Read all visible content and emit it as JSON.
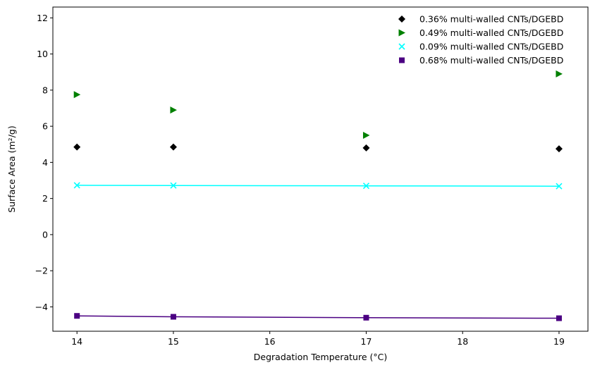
{
  "chart_data": {
    "type": "scatter",
    "xlabel": "Degradation Temperature (°C)",
    "ylabel": "Surface Area (m²/g)",
    "xlim": [
      13.75,
      19.3
    ],
    "ylim": [
      -5.35,
      12.6
    ],
    "xticks": [
      14,
      15,
      16,
      17,
      18,
      19
    ],
    "yticks": [
      -4,
      -2,
      0,
      2,
      4,
      6,
      8,
      10,
      12
    ],
    "legend_position": "top-right",
    "grid": false,
    "series": [
      {
        "name": "0.36% multi-walled CNTs/DGEBD",
        "marker": "diamond",
        "color": "#000000",
        "line": false,
        "x": [
          14,
          15,
          17,
          19
        ],
        "y": [
          4.85,
          4.85,
          4.8,
          4.75
        ]
      },
      {
        "name": "0.49% multi-walled CNTs/DGEBD",
        "marker": "triangle-right",
        "color": "#008000",
        "line": false,
        "x": [
          14,
          15,
          17,
          19
        ],
        "y": [
          7.75,
          6.9,
          5.5,
          8.9
        ]
      },
      {
        "name": "0.09% multi-walled CNTs/DGEBD",
        "marker": "x",
        "color": "#00ffff",
        "line": true,
        "x": [
          14,
          15,
          17,
          19
        ],
        "y": [
          2.73,
          2.72,
          2.7,
          2.68
        ]
      },
      {
        "name": "0.68% multi-walled CNTs/DGEBD",
        "marker": "square",
        "color": "#4b0082",
        "line": true,
        "x": [
          14,
          15,
          17,
          19
        ],
        "y": [
          -4.5,
          -4.55,
          -4.6,
          -4.63
        ]
      }
    ]
  }
}
